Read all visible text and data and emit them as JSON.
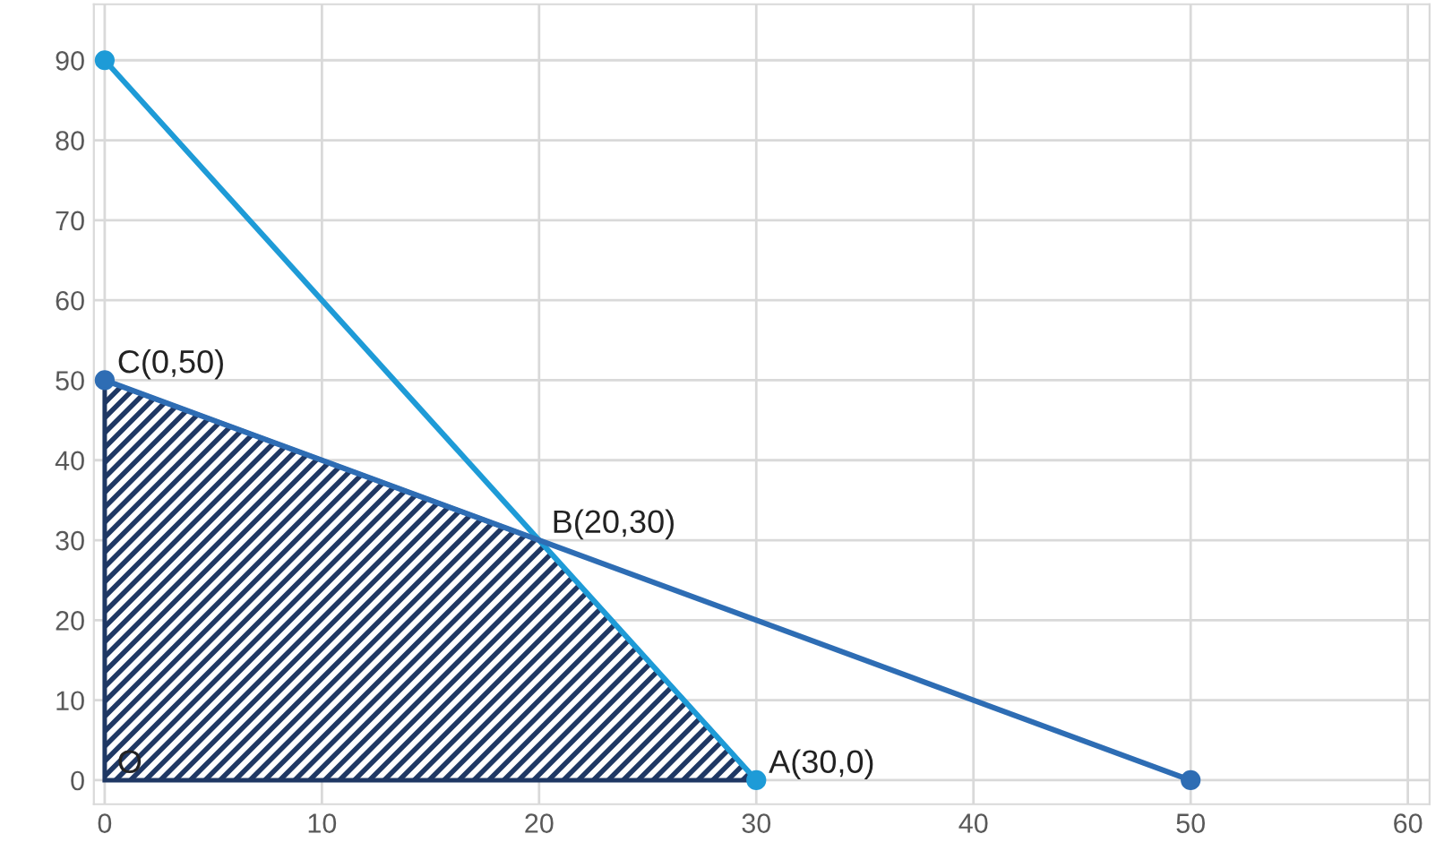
{
  "chart_data": {
    "type": "line",
    "xlim": [
      -0.5,
      61
    ],
    "ylim": [
      -3,
      97
    ],
    "xticks": [
      0,
      10,
      20,
      30,
      40,
      50,
      60
    ],
    "yticks": [
      0,
      10,
      20,
      30,
      40,
      50,
      60,
      70,
      80,
      90
    ],
    "grid": true,
    "line_style": "solid",
    "series": [
      {
        "type": "area",
        "x": [
          0,
          20,
          30
        ],
        "values": [
          50,
          30,
          0
        ],
        "color": "#1f3864"
      },
      {
        "x": [
          0,
          30
        ],
        "values": [
          90,
          0
        ],
        "color": "#1e9bd7",
        "marker": "circle"
      },
      {
        "x": [
          0,
          50
        ],
        "values": [
          50,
          0
        ],
        "color": "#2e6db4",
        "marker": "circle"
      }
    ],
    "annotations": [
      {
        "text": "C(0,50)",
        "x": 0,
        "y": 50
      },
      {
        "text": "B(20,30)",
        "x": 20,
        "y": 30
      },
      {
        "text": "A(30,0)",
        "x": 30,
        "y": 0
      },
      {
        "text": "O",
        "x": 0,
        "y": 0
      }
    ]
  }
}
